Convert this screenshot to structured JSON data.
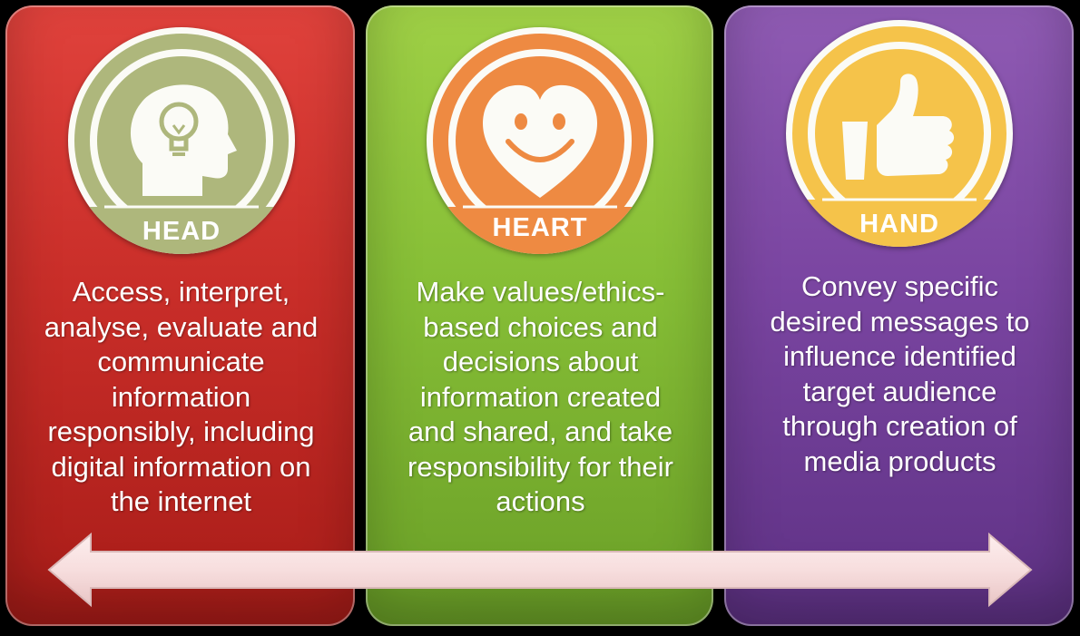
{
  "panels": [
    {
      "id": "head",
      "badge_label": "HEAD",
      "icon": "head-lightbulb-icon",
      "color": "#c9302b",
      "badge_color": "#aeb77c",
      "description": [
        "Access, interpret,",
        "analyse, evaluate and",
        "communicate",
        "information",
        "responsibly, including",
        "digital information on",
        "the internet"
      ]
    },
    {
      "id": "heart",
      "badge_label": "HEART",
      "icon": "smiling-heart-icon",
      "color": "#86be36",
      "badge_color": "#ee8a42",
      "description": [
        "Make values/ethics-",
        "based choices and",
        "decisions about",
        "information created",
        "and shared, and take",
        "responsibility for their",
        "actions"
      ]
    },
    {
      "id": "hand",
      "badge_label": "HAND",
      "icon": "thumbs-up-icon",
      "color": "#7a45a1",
      "badge_color": "#f5c34a",
      "description": [
        "Convey specific",
        "desired messages to",
        "influence identified",
        "target audience",
        "through creation of",
        "media products"
      ]
    }
  ],
  "arrow": {
    "icon": "double-headed-arrow",
    "color": "#f7dede"
  }
}
